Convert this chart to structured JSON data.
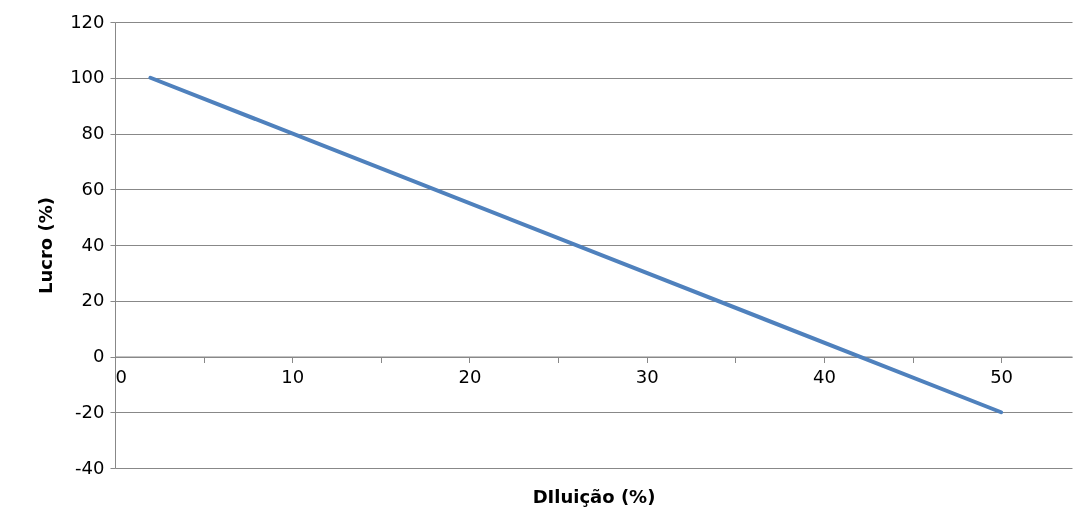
{
  "chart_data": {
    "type": "line",
    "xlabel": "DIluição (%)",
    "ylabel": "Lucro (%)",
    "x": [
      2,
      50
    ],
    "series": [
      {
        "color": "#4f81bd",
        "values": [
          100,
          -20
        ]
      }
    ],
    "xlim": [
      0,
      54
    ],
    "xticks": [
      0,
      {
        "value": 5,
        "label": null
      },
      10,
      {
        "value": 15,
        "label": null
      },
      20,
      {
        "value": 25,
        "label": null
      },
      30,
      {
        "value": 35,
        "label": null
      },
      40,
      {
        "value": 45,
        "label": null
      },
      50
    ],
    "ylim": [
      -40,
      120
    ],
    "yticks": [
      -40,
      -20,
      0,
      20,
      40,
      60,
      80,
      100,
      120
    ],
    "grid": "y",
    "marker": "none",
    "line_style": "solid"
  }
}
